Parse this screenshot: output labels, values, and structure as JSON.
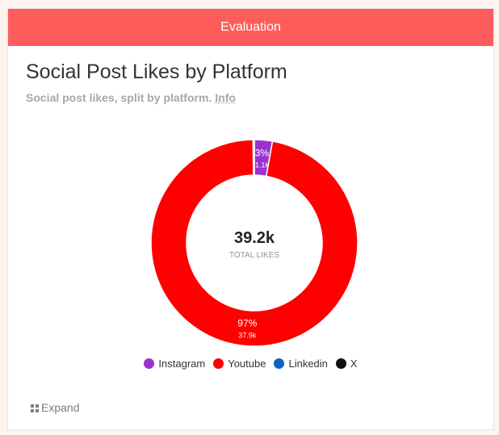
{
  "banner": {
    "title": "Evaluation"
  },
  "header": {
    "title": "Social Post Likes by Platform",
    "subtitle": "Social post likes, split by platform.",
    "info_link": "Info"
  },
  "center": {
    "value": "39.2k",
    "label": "TOTAL LIKES"
  },
  "expand_label": "Expand",
  "chart_data": {
    "type": "pie",
    "variant": "donut",
    "title": "Social Post Likes by Platform",
    "subtitle": "Social post likes, split by platform.",
    "total": 39200,
    "legend_position": "bottom",
    "slices": [
      {
        "name": "Instagram",
        "value": 1100,
        "percent": 3,
        "value_label": "1.1k",
        "percent_label": "3%",
        "color": "#9933cc"
      },
      {
        "name": "Youtube",
        "value": 37900,
        "percent": 97,
        "value_label": "37.9k",
        "percent_label": "97%",
        "color": "#ff0000"
      },
      {
        "name": "Linkedin",
        "value": 40,
        "percent": 0.1,
        "value_label": "",
        "percent_label": "",
        "color": "#0a66c2"
      },
      {
        "name": "X",
        "value": 40,
        "percent": 0.1,
        "value_label": "",
        "percent_label": "",
        "color": "#111111"
      }
    ]
  }
}
